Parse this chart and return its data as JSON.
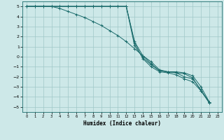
{
  "xlabel": "Humidex (Indice chaleur)",
  "xlim": [
    -0.5,
    23.5
  ],
  "ylim": [
    -5.5,
    5.5
  ],
  "xticks": [
    0,
    1,
    2,
    3,
    4,
    5,
    6,
    7,
    8,
    9,
    10,
    11,
    12,
    13,
    14,
    15,
    16,
    17,
    18,
    19,
    20,
    21,
    22,
    23
  ],
  "yticks": [
    -5,
    -4,
    -3,
    -2,
    -1,
    0,
    1,
    2,
    3,
    4,
    5
  ],
  "bg_color": "#cde8e8",
  "grid_color": "#a0c8c8",
  "line_color": "#1a6b6b",
  "lines": [
    [
      5,
      5,
      5,
      5,
      5,
      5,
      5,
      5,
      5,
      5,
      5,
      5,
      5,
      1.5,
      0.1,
      -0.5,
      -1.3,
      -1.5,
      -1.6,
      -1.7,
      -2.1,
      -3.4,
      -4.5
    ],
    [
      5,
      5,
      5,
      5,
      5,
      5,
      5,
      5,
      5,
      5,
      5,
      5,
      5,
      1.1,
      -0.1,
      -0.8,
      -1.4,
      -1.5,
      -1.5,
      -1.6,
      -1.9,
      -3.0,
      -4.5
    ],
    [
      5,
      5,
      5,
      5,
      4.8,
      4.5,
      4.2,
      3.9,
      3.5,
      3.1,
      2.6,
      2.1,
      1.5,
      0.8,
      0.1,
      -0.7,
      -1.4,
      -1.5,
      -1.6,
      -2.0,
      -2.2,
      -3.3,
      -4.6
    ],
    [
      5,
      5,
      5,
      5,
      5,
      5,
      5,
      5,
      5,
      5,
      5,
      5,
      5,
      1.4,
      -0.2,
      -1.0,
      -1.5,
      -1.6,
      -1.8,
      -2.2,
      -2.5,
      -3.4,
      -4.6
    ]
  ]
}
